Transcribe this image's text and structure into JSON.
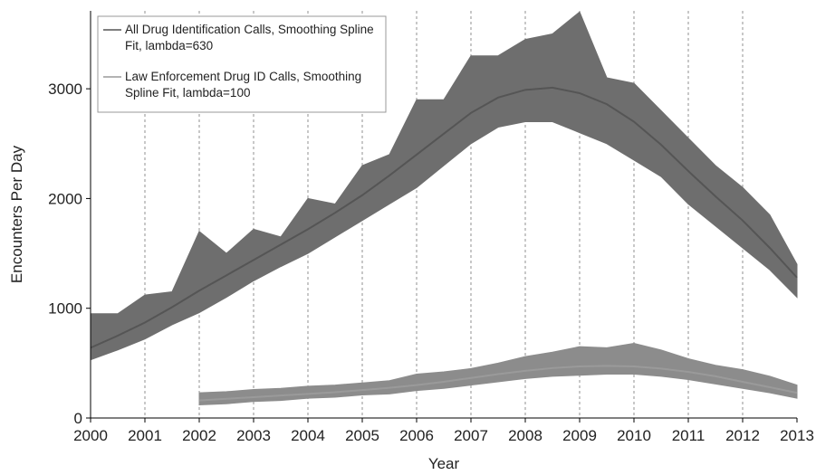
{
  "chart_data": {
    "type": "line",
    "xlabel": "Year",
    "ylabel": "Encounters Per Day",
    "x": [
      2000,
      2000.5,
      2001,
      2001.5,
      2002,
      2002.5,
      2003,
      2003.5,
      2004,
      2004.5,
      2005,
      2005.5,
      2006,
      2006.5,
      2007,
      2007.5,
      2008,
      2008.5,
      2009,
      2009.5,
      2010,
      2010.5,
      2011,
      2011.5,
      2012,
      2012.5,
      2013
    ],
    "series": [
      {
        "name": "All Drug Identification Calls, Smoothing Spline Fit, lambda=630",
        "color": "#555555",
        "values": [
          640,
          750,
          870,
          1010,
          1160,
          1300,
          1440,
          1580,
          1720,
          1870,
          2030,
          2210,
          2400,
          2590,
          2780,
          2920,
          2990,
          3010,
          2960,
          2860,
          2700,
          2490,
          2250,
          2020,
          1800,
          1550,
          1280
        ]
      },
      {
        "name": "Law Enforcement Drug ID Calls, Smoothing Spline Fit, lambda=100",
        "color": "#9a9a9a",
        "values": [
          null,
          null,
          null,
          null,
          160,
          175,
          190,
          205,
          220,
          235,
          255,
          275,
          300,
          330,
          365,
          400,
          430,
          455,
          470,
          475,
          470,
          450,
          420,
          380,
          330,
          280,
          230
        ]
      }
    ],
    "bands": [
      {
        "color": "#6e6e6e",
        "low": [
          530,
          620,
          720,
          850,
          960,
          1100,
          1250,
          1380,
          1500,
          1650,
          1800,
          1950,
          2100,
          2300,
          2500,
          2650,
          2700,
          2700,
          2600,
          2500,
          2350,
          2200,
          1950,
          1750,
          1550,
          1350,
          1100
        ],
        "high": [
          950,
          950,
          1120,
          1150,
          1700,
          1500,
          1720,
          1650,
          2000,
          1950,
          2300,
          2400,
          2900,
          2900,
          3300,
          3300,
          3450,
          3500,
          3700,
          3100,
          3050,
          2800,
          2550,
          2300,
          2100,
          1850,
          1400
        ]
      },
      {
        "color": "#8c8c8c",
        "low": [
          null,
          null,
          null,
          null,
          120,
          130,
          150,
          160,
          180,
          190,
          210,
          220,
          250,
          270,
          300,
          330,
          360,
          380,
          390,
          400,
          400,
          380,
          350,
          310,
          270,
          230,
          180
        ],
        "high": [
          null,
          null,
          null,
          null,
          230,
          240,
          260,
          270,
          290,
          300,
          320,
          340,
          400,
          420,
          450,
          500,
          560,
          600,
          650,
          640,
          680,
          620,
          540,
          480,
          440,
          380,
          300
        ]
      }
    ],
    "xlim": [
      2000,
      2013
    ],
    "xticks": [
      2000,
      2001,
      2002,
      2003,
      2004,
      2005,
      2006,
      2007,
      2008,
      2009,
      2010,
      2011,
      2012,
      2013
    ],
    "ylim": [
      0,
      3710
    ],
    "yticks": [
      0,
      1000,
      2000,
      3000
    ],
    "grid": "x-dashed",
    "legend": "upper left"
  }
}
